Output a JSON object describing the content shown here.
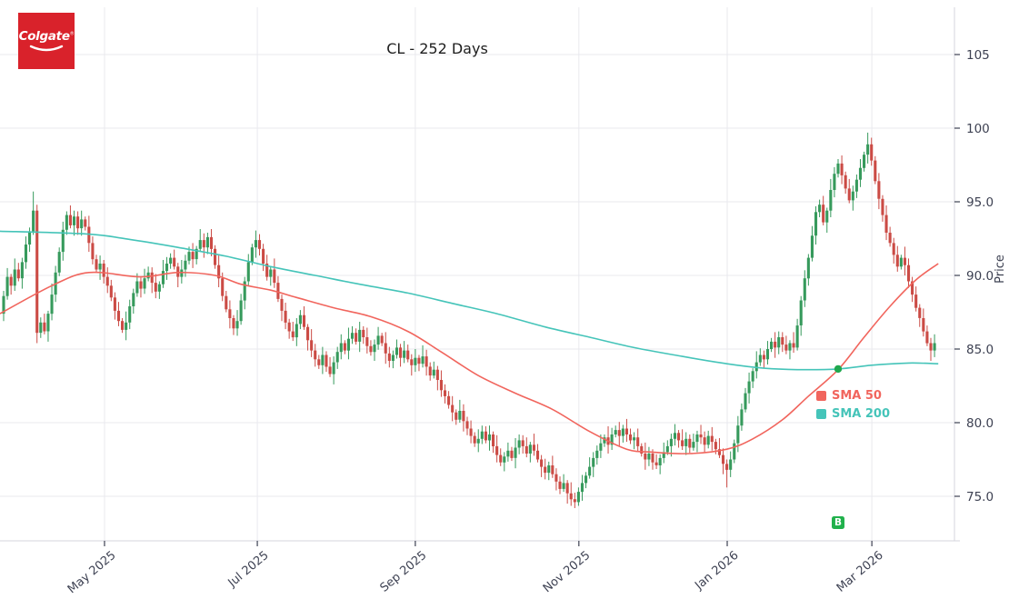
{
  "branding": {
    "logo_text": "Colgate",
    "trademark": "®",
    "logo_bg": "#d9222b",
    "logo_fg": "#ffffff"
  },
  "legend": {
    "items": [
      {
        "label": "SMA 50",
        "color": "#f1655d"
      },
      {
        "label": "SMA 200",
        "color": "#45c4b9"
      }
    ]
  },
  "chart_data": {
    "type": "candlestick",
    "title": "CL - 252 Days",
    "symbol": "CL",
    "period_days": 252,
    "xlabel": "",
    "ylabel": "Price",
    "ylim": [
      71.9,
      108.1
    ],
    "grid": true,
    "colors": {
      "up": "#369a5c",
      "down": "#cb4b45",
      "sma50": "#f1655d",
      "sma200": "#45c4b9",
      "grid": "#e9e9ee",
      "frame": "#d4d4dc",
      "axis_text": "#3d4152",
      "cross_dot": "#20a84e",
      "buy": "#21b14c"
    },
    "axes": {
      "y": {
        "label": "Price",
        "ticks": [
          {
            "price": 105,
            "label": "105"
          },
          {
            "price": 100,
            "label": "100"
          },
          {
            "price": 95,
            "label": "95.0"
          },
          {
            "price": 90,
            "label": "90.0"
          },
          {
            "price": 85,
            "label": "85.0"
          },
          {
            "price": 80,
            "label": "80.0"
          },
          {
            "price": 75,
            "label": "75.0"
          }
        ]
      },
      "x": {
        "ticks": [
          {
            "day": 27.2,
            "label": "May 2025"
          },
          {
            "day": 68.4,
            "label": "Jul 2025"
          },
          {
            "day": 111.0,
            "label": "Sep 2025"
          },
          {
            "day": 155.1,
            "label": "Nov 2025"
          },
          {
            "day": 195.1,
            "label": "Jan 2026"
          },
          {
            "day": 234.1,
            "label": "Mar 2026"
          }
        ]
      }
    },
    "candles": {
      "first_open": 87.4,
      "closes": [
        88.6,
        89.9,
        89.3,
        90.4,
        89.8,
        90.9,
        92.1,
        93.0,
        94.4,
        86.1,
        86.8,
        86.2,
        87.4,
        88.7,
        90.2,
        91.6,
        93.1,
        94.1,
        93.4,
        94.0,
        93.2,
        93.8,
        93.3,
        92.2,
        91.1,
        90.4,
        90.8,
        89.9,
        89.3,
        88.5,
        87.6,
        86.9,
        86.3,
        86.8,
        87.9,
        88.8,
        89.6,
        89.1,
        89.8,
        90.2,
        89.5,
        88.9,
        89.4,
        90.3,
        90.8,
        91.2,
        90.6,
        89.9,
        90.4,
        91.0,
        91.6,
        91.1,
        91.8,
        92.4,
        91.9,
        92.6,
        91.8,
        90.7,
        89.8,
        88.6,
        87.7,
        87.1,
        86.4,
        86.9,
        88.3,
        89.6,
        90.9,
        91.9,
        92.4,
        91.8,
        90.8,
        89.9,
        90.4,
        89.5,
        88.4,
        87.6,
        86.8,
        86.2,
        85.8,
        86.7,
        87.3,
        86.5,
        85.6,
        84.9,
        84.3,
        83.9,
        84.6,
        83.8,
        83.3,
        84.1,
        84.8,
        85.4,
        84.9,
        85.7,
        86.1,
        85.5,
        86.3,
        85.8,
        85.2,
        84.8,
        85.3,
        85.9,
        85.4,
        84.7,
        84.2,
        84.6,
        85.1,
        84.4,
        84.9,
        84.3,
        83.9,
        84.4,
        84.0,
        84.5,
        83.8,
        83.2,
        83.6,
        82.9,
        82.2,
        81.8,
        81.2,
        80.7,
        80.2,
        80.8,
        80.1,
        79.6,
        79.1,
        78.6,
        78.9,
        79.4,
        78.8,
        79.2,
        78.4,
        77.8,
        77.3,
        77.7,
        78.1,
        77.6,
        78.3,
        78.8,
        78.4,
        77.9,
        78.5,
        78.1,
        77.5,
        77.0,
        76.6,
        77.1,
        76.5,
        76.0,
        75.5,
        75.9,
        75.2,
        74.8,
        74.6,
        75.3,
        75.9,
        76.4,
        77.0,
        77.6,
        78.1,
        78.6,
        79.0,
        78.5,
        79.2,
        79.5,
        79.1,
        79.6,
        79.2,
        78.8,
        79.0,
        78.4,
        77.9,
        77.5,
        77.9,
        77.3,
        77.1,
        77.6,
        78.0,
        78.4,
        78.9,
        79.3,
        78.8,
        78.4,
        78.9,
        78.3,
        78.7,
        79.2,
        79.0,
        78.5,
        79.1,
        78.7,
        78.2,
        77.8,
        77.2,
        76.8,
        77.5,
        78.6,
        79.8,
        80.9,
        82.0,
        82.8,
        83.5,
        84.1,
        84.6,
        84.3,
        85.0,
        85.5,
        85.1,
        85.8,
        85.3,
        84.9,
        85.4,
        85.1,
        86.6,
        88.3,
        89.8,
        91.2,
        92.7,
        94.3,
        94.8,
        93.6,
        94.4,
        95.8,
        96.9,
        97.6,
        96.8,
        95.9,
        95.1,
        95.7,
        96.5,
        97.3,
        98.2,
        98.9,
        97.8,
        96.4,
        95.2,
        94.1,
        92.9,
        92.2,
        91.4,
        90.6,
        91.2,
        90.7,
        89.6,
        88.7,
        87.8,
        87.1,
        86.2,
        85.4,
        84.9,
        85.4
      ],
      "wick_high_pattern": [
        0.35,
        0.6,
        0.2,
        0.75,
        0.45,
        0.3,
        0.55,
        0.25,
        0.65,
        0.4
      ],
      "wick_low_pattern": [
        0.5,
        0.25,
        0.6,
        0.35,
        0.2,
        0.7,
        0.45
      ],
      "overrides": {
        "8": {
          "high": 95.7
        },
        "9": {
          "low": 85.4
        },
        "154": {
          "low": 74.2
        },
        "195": {
          "low": 75.6
        },
        "233": {
          "high": 99.7
        }
      }
    },
    "sma50": {
      "name": "SMA 50",
      "points": [
        [
          -1,
          87.4
        ],
        [
          13,
          89.3
        ],
        [
          23,
          90.2
        ],
        [
          37,
          89.9
        ],
        [
          47,
          90.2
        ],
        [
          57,
          90.0
        ],
        [
          64,
          89.4
        ],
        [
          72,
          89.0
        ],
        [
          79,
          88.5
        ],
        [
          89,
          87.8
        ],
        [
          99,
          87.2
        ],
        [
          109,
          86.2
        ],
        [
          118,
          84.8
        ],
        [
          128,
          83.2
        ],
        [
          138,
          82.0
        ],
        [
          148,
          80.9
        ],
        [
          158,
          79.4
        ],
        [
          168,
          78.2
        ],
        [
          175,
          78.0
        ],
        [
          185,
          77.9
        ],
        [
          195,
          78.2
        ],
        [
          202,
          78.9
        ],
        [
          210,
          80.2
        ],
        [
          217,
          81.8
        ],
        [
          225,
          83.6
        ],
        [
          232,
          85.8
        ],
        [
          239,
          87.9
        ],
        [
          246,
          89.7
        ],
        [
          252,
          90.8
        ]
      ]
    },
    "sma200": {
      "name": "SMA 200",
      "points": [
        [
          -1,
          93.0
        ],
        [
          23,
          92.8
        ],
        [
          35,
          92.4
        ],
        [
          47,
          91.9
        ],
        [
          60,
          91.3
        ],
        [
          72,
          90.6
        ],
        [
          84,
          90.0
        ],
        [
          96,
          89.4
        ],
        [
          109,
          88.8
        ],
        [
          121,
          88.1
        ],
        [
          133,
          87.4
        ],
        [
          146,
          86.5
        ],
        [
          158,
          85.8
        ],
        [
          170,
          85.1
        ],
        [
          183,
          84.5
        ],
        [
          195,
          84.0
        ],
        [
          205,
          83.7
        ],
        [
          214,
          83.6
        ],
        [
          225,
          83.65
        ],
        [
          234,
          83.9
        ],
        [
          244,
          84.05
        ],
        [
          252,
          84.0
        ]
      ]
    },
    "markers": {
      "golden_cross": {
        "day": 225,
        "price": 83.65
      },
      "buy_signal": {
        "day": 225,
        "price": 73.2,
        "label": "B"
      }
    }
  }
}
